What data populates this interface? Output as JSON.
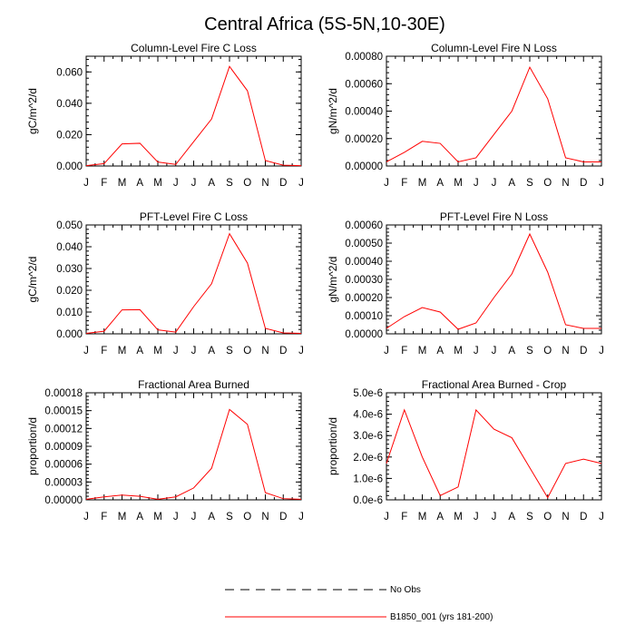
{
  "figure_title": "Central Africa (5S-5N,10-30E)",
  "colors": {
    "series": "#ff0000",
    "axis": "#000000"
  },
  "legend": {
    "obs_label": "No Obs",
    "model_label": "B1850_001 (yrs 181-200)"
  },
  "chart_data": [
    {
      "type": "line",
      "title": "Column-Level Fire C Loss",
      "ylabel": "gC/m^2/d",
      "categories": [
        "J",
        "F",
        "M",
        "A",
        "M",
        "J",
        "J",
        "A",
        "S",
        "O",
        "N",
        "D",
        "J"
      ],
      "ylim": [
        0,
        0.07
      ],
      "yticks": [
        "0.000",
        "0.020",
        "0.040",
        "0.060"
      ],
      "ytick_values": [
        0,
        0.02,
        0.04,
        0.06
      ],
      "series": [
        {
          "name": "B1850_001 (yrs 181-200)",
          "values": [
            0.0002,
            0.0015,
            0.0141,
            0.0145,
            0.0025,
            0.001,
            0.0155,
            0.03,
            0.0635,
            0.048,
            0.0035,
            0.0005,
            0.0002
          ]
        }
      ]
    },
    {
      "type": "line",
      "title": "Column-Level Fire N Loss",
      "ylabel": "gN/m^2/d",
      "categories": [
        "J",
        "F",
        "M",
        "A",
        "M",
        "J",
        "J",
        "A",
        "S",
        "O",
        "N",
        "D",
        "J"
      ],
      "ylim": [
        0,
        0.0008
      ],
      "yticks": [
        "0.00000",
        "0.00020",
        "0.00040",
        "0.00060",
        "0.00080"
      ],
      "ytick_values": [
        0,
        0.0002,
        0.0004,
        0.0006,
        0.0008
      ],
      "series": [
        {
          "name": "B1850_001 (yrs 181-200)",
          "values": [
            3e-05,
            0.0001,
            0.00018,
            0.000165,
            3e-05,
            6e-05,
            0.00023,
            0.0004,
            0.00072,
            0.00049,
            6e-05,
            3e-05,
            3e-05
          ]
        }
      ]
    },
    {
      "type": "line",
      "title": "PFT-Level Fire C Loss",
      "ylabel": "gC/m^2/d",
      "categories": [
        "J",
        "F",
        "M",
        "A",
        "M",
        "J",
        "J",
        "A",
        "S",
        "O",
        "N",
        "D",
        "J"
      ],
      "ylim": [
        0,
        0.05
      ],
      "yticks": [
        "0.000",
        "0.010",
        "0.020",
        "0.030",
        "0.040",
        "0.050"
      ],
      "ytick_values": [
        0,
        0.01,
        0.02,
        0.03,
        0.04,
        0.05
      ],
      "series": [
        {
          "name": "B1850_001 (yrs 181-200)",
          "values": [
            0.0002,
            0.0012,
            0.011,
            0.0111,
            0.0018,
            0.0008,
            0.0125,
            0.023,
            0.046,
            0.0325,
            0.0025,
            0.0004,
            0.0002
          ]
        }
      ]
    },
    {
      "type": "line",
      "title": "PFT-Level Fire N Loss",
      "ylabel": "gN/m^2/d",
      "categories": [
        "J",
        "F",
        "M",
        "A",
        "M",
        "J",
        "J",
        "A",
        "S",
        "O",
        "N",
        "D",
        "J"
      ],
      "ylim": [
        0,
        0.0006
      ],
      "yticks": [
        "0.00000",
        "0.00010",
        "0.00020",
        "0.00030",
        "0.00040",
        "0.00050",
        "0.00060"
      ],
      "ytick_values": [
        0,
        0.0001,
        0.0002,
        0.0003,
        0.0004,
        0.0005,
        0.0006
      ],
      "series": [
        {
          "name": "B1850_001 (yrs 181-200)",
          "values": [
            3e-05,
            9.5e-05,
            0.000145,
            0.00012,
            2.5e-05,
            6e-05,
            0.0002,
            0.00033,
            0.00055,
            0.00034,
            5e-05,
            3e-05,
            3e-05
          ]
        }
      ]
    },
    {
      "type": "line",
      "title": "Fractional Area Burned",
      "ylabel": "proportion/d",
      "categories": [
        "J",
        "F",
        "M",
        "A",
        "M",
        "J",
        "J",
        "A",
        "S",
        "O",
        "N",
        "D",
        "J"
      ],
      "ylim": [
        0,
        0.00018
      ],
      "yticks": [
        "0.00000",
        "0.00003",
        "0.00006",
        "0.00009",
        "0.00012",
        "0.00015",
        "0.00018"
      ],
      "ytick_values": [
        0,
        3e-05,
        6e-05,
        9e-05,
        0.00012,
        0.00015,
        0.00018
      ],
      "series": [
        {
          "name": "B1850_001 (yrs 181-200)",
          "values": [
            1e-06,
            5e-06,
            8e-06,
            6e-06,
            1e-06,
            5e-06,
            2e-05,
            5.3e-05,
            0.000152,
            0.000127,
            1.2e-05,
            2e-06,
            1e-06
          ]
        }
      ]
    },
    {
      "type": "line",
      "title": "Fractional Area Burned - Crop",
      "ylabel": "proportion/d",
      "categories": [
        "J",
        "F",
        "M",
        "A",
        "M",
        "J",
        "J",
        "A",
        "S",
        "O",
        "N",
        "D",
        "J"
      ],
      "ylim": [
        0,
        5e-06
      ],
      "yticks": [
        "0.0e-6",
        "1.0e-6",
        "2.0e-6",
        "3.0e-6",
        "4.0e-6",
        "5.0e-6"
      ],
      "ytick_values": [
        0,
        1e-06,
        2e-06,
        3e-06,
        4e-06,
        5e-06
      ],
      "series": [
        {
          "name": "B1850_001 (yrs 181-200)",
          "values": [
            1.7e-06,
            4.2e-06,
            2e-06,
            2e-07,
            6e-07,
            4.2e-06,
            3.3e-06,
            2.9e-06,
            1.5e-06,
            1e-07,
            1.7e-06,
            1.9e-06,
            1.7e-06
          ]
        }
      ]
    }
  ]
}
